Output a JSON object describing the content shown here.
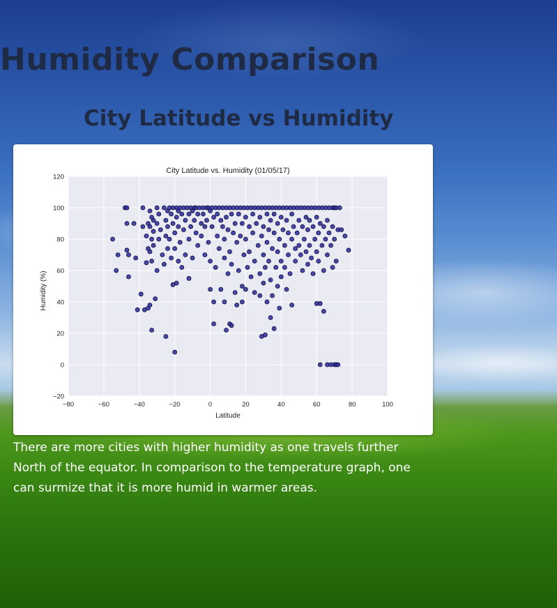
{
  "page": {
    "title": "Humidity Comparison",
    "subtitle": "City Latitude vs Humidity",
    "description": "There are more cities with higher humidity as one travels further North of the equator. In comparison to the temperature graph, one can surmize that it is more humid in warmer areas."
  },
  "colors": {
    "point": "#2b2b9e",
    "point_edge": "#0b0b3a",
    "plot_bg": "#eaeaf2",
    "grid": "#ffffff"
  },
  "chart_data": {
    "type": "scatter",
    "title": "City Latitude vs. Humidity (01/05/17)",
    "xlabel": "Latitude",
    "ylabel": "Humidity (%)",
    "xlim": [
      -80,
      100
    ],
    "ylim": [
      -20,
      120
    ],
    "xticks": [
      -80,
      -60,
      -40,
      -20,
      0,
      20,
      40,
      60,
      80,
      100
    ],
    "yticks": [
      -20,
      0,
      20,
      40,
      60,
      80,
      100,
      120
    ],
    "xtick_labels": [
      "−80",
      "−60",
      "−40",
      "−20",
      "0",
      "20",
      "40",
      "60",
      "80",
      "100"
    ],
    "ytick_labels": [
      "−20",
      "0",
      "20",
      "40",
      "60",
      "80",
      "100",
      "120"
    ],
    "grid": true,
    "points": [
      [
        -55,
        80
      ],
      [
        -53,
        60
      ],
      [
        -52,
        70
      ],
      [
        -48,
        100
      ],
      [
        -47,
        100
      ],
      [
        -47,
        90
      ],
      [
        -47,
        73
      ],
      [
        -46,
        70
      ],
      [
        -46,
        56
      ],
      [
        -43,
        90
      ],
      [
        -42,
        68
      ],
      [
        -41,
        35
      ],
      [
        -39,
        45
      ],
      [
        -38,
        100
      ],
      [
        -38,
        88
      ],
      [
        -37,
        35
      ],
      [
        -36,
        82
      ],
      [
        -36,
        65
      ],
      [
        -35,
        90
      ],
      [
        -35,
        74
      ],
      [
        -35,
        36
      ],
      [
        -34,
        98
      ],
      [
        -34,
        88
      ],
      [
        -34,
        72
      ],
      [
        -34,
        38
      ],
      [
        -33,
        94
      ],
      [
        -33,
        80
      ],
      [
        -33,
        66
      ],
      [
        -33,
        22
      ],
      [
        -32,
        92
      ],
      [
        -32,
        85
      ],
      [
        -32,
        76
      ],
      [
        -31,
        42
      ],
      [
        -30,
        100
      ],
      [
        -30,
        90
      ],
      [
        -30,
        60
      ],
      [
        -29,
        96
      ],
      [
        -29,
        80
      ],
      [
        -28,
        86
      ],
      [
        -27,
        70
      ],
      [
        -26,
        100
      ],
      [
        -26,
        64
      ],
      [
        -25,
        92
      ],
      [
        -25,
        82
      ],
      [
        -25,
        18
      ],
      [
        -24,
        98
      ],
      [
        -24,
        88
      ],
      [
        -24,
        74
      ],
      [
        -23,
        100
      ],
      [
        -23,
        80
      ],
      [
        -22,
        96
      ],
      [
        -22,
        68
      ],
      [
        -21,
        100
      ],
      [
        -21,
        90
      ],
      [
        -21,
        51
      ],
      [
        -20,
        84
      ],
      [
        -20,
        74
      ],
      [
        -20,
        8
      ],
      [
        -19,
        100
      ],
      [
        -19,
        94
      ],
      [
        -19,
        52
      ],
      [
        -18,
        98
      ],
      [
        -18,
        88
      ],
      [
        -18,
        66
      ],
      [
        -17,
        100
      ],
      [
        -17,
        78
      ],
      [
        -16,
        96
      ],
      [
        -16,
        62
      ],
      [
        -15,
        100
      ],
      [
        -15,
        86
      ],
      [
        -14,
        92
      ],
      [
        -14,
        70
      ],
      [
        -13,
        100
      ],
      [
        -12,
        96
      ],
      [
        -12,
        80
      ],
      [
        -12,
        55
      ],
      [
        -11,
        100
      ],
      [
        -11,
        88
      ],
      [
        -10,
        98
      ],
      [
        -10,
        68
      ],
      [
        -9,
        100
      ],
      [
        -9,
        92
      ],
      [
        -8,
        84
      ],
      [
        -8,
        100
      ],
      [
        -7,
        96
      ],
      [
        -7,
        76
      ],
      [
        -6,
        100
      ],
      [
        -5,
        90
      ],
      [
        -5,
        82
      ],
      [
        -4,
        100
      ],
      [
        -4,
        96
      ],
      [
        -3,
        88
      ],
      [
        -3,
        70
      ],
      [
        -2,
        100
      ],
      [
        -2,
        92
      ],
      [
        -1,
        100
      ],
      [
        -1,
        78
      ],
      [
        0,
        98
      ],
      [
        0,
        66
      ],
      [
        0,
        48
      ],
      [
        1,
        100
      ],
      [
        1,
        88
      ],
      [
        2,
        94
      ],
      [
        2,
        40
      ],
      [
        2,
        26
      ],
      [
        3,
        100
      ],
      [
        3,
        62
      ],
      [
        4,
        96
      ],
      [
        4,
        82
      ],
      [
        5,
        100
      ],
      [
        5,
        74
      ],
      [
        6,
        92
      ],
      [
        6,
        48
      ],
      [
        7,
        100
      ],
      [
        7,
        88
      ],
      [
        8,
        80
      ],
      [
        8,
        68
      ],
      [
        8,
        40
      ],
      [
        9,
        100
      ],
      [
        9,
        94
      ],
      [
        9,
        22
      ],
      [
        10,
        86
      ],
      [
        10,
        58
      ],
      [
        11,
        100
      ],
      [
        11,
        72
      ],
      [
        11,
        26
      ],
      [
        12,
        96
      ],
      [
        12,
        64
      ],
      [
        12,
        25
      ],
      [
        13,
        100
      ],
      [
        13,
        84
      ],
      [
        14,
        90
      ],
      [
        14,
        46
      ],
      [
        15,
        100
      ],
      [
        15,
        78
      ],
      [
        15,
        38
      ],
      [
        16,
        96
      ],
      [
        16,
        60
      ],
      [
        17,
        100
      ],
      [
        17,
        82
      ],
      [
        18,
        90
      ],
      [
        18,
        50
      ],
      [
        18,
        40
      ],
      [
        19,
        100
      ],
      [
        19,
        70
      ],
      [
        20,
        94
      ],
      [
        20,
        80
      ],
      [
        20,
        48
      ],
      [
        21,
        100
      ],
      [
        21,
        62
      ],
      [
        22,
        88
      ],
      [
        22,
        72
      ],
      [
        23,
        100
      ],
      [
        23,
        56
      ],
      [
        24,
        96
      ],
      [
        24,
        84
      ],
      [
        25,
        100
      ],
      [
        25,
        66
      ],
      [
        25,
        46
      ],
      [
        26,
        90
      ],
      [
        27,
        100
      ],
      [
        27,
        76
      ],
      [
        28,
        94
      ],
      [
        28,
        58
      ],
      [
        28,
        44
      ],
      [
        29,
        100
      ],
      [
        29,
        82
      ],
      [
        29,
        18
      ],
      [
        30,
        88
      ],
      [
        30,
        70
      ],
      [
        30,
        52
      ],
      [
        31,
        100
      ],
      [
        31,
        62
      ],
      [
        31,
        19
      ],
      [
        32,
        96
      ],
      [
        32,
        78
      ],
      [
        32,
        40
      ],
      [
        33,
        100
      ],
      [
        33,
        86
      ],
      [
        33,
        66
      ],
      [
        34,
        92
      ],
      [
        34,
        54
      ],
      [
        34,
        30
      ],
      [
        35,
        100
      ],
      [
        35,
        74
      ],
      [
        35,
        44
      ],
      [
        36,
        96
      ],
      [
        36,
        84
      ],
      [
        36,
        23
      ],
      [
        37,
        100
      ],
      [
        37,
        62
      ],
      [
        38,
        90
      ],
      [
        38,
        72
      ],
      [
        38,
        50
      ],
      [
        39,
        100
      ],
      [
        39,
        80
      ],
      [
        39,
        36
      ],
      [
        40,
        94
      ],
      [
        40,
        66
      ],
      [
        40,
        56
      ],
      [
        41,
        100
      ],
      [
        41,
        86
      ],
      [
        42,
        76
      ],
      [
        42,
        62
      ],
      [
        43,
        100
      ],
      [
        43,
        92
      ],
      [
        43,
        48
      ],
      [
        44,
        84
      ],
      [
        44,
        70
      ],
      [
        45,
        100
      ],
      [
        45,
        58
      ],
      [
        46,
        96
      ],
      [
        46,
        80
      ],
      [
        46,
        38
      ],
      [
        47,
        100
      ],
      [
        47,
        88
      ],
      [
        48,
        74
      ],
      [
        48,
        66
      ],
      [
        49,
        100
      ],
      [
        49,
        84
      ],
      [
        50,
        92
      ],
      [
        50,
        76
      ],
      [
        51,
        100
      ],
      [
        51,
        70
      ],
      [
        52,
        88
      ],
      [
        52,
        60
      ],
      [
        53,
        100
      ],
      [
        53,
        80
      ],
      [
        54,
        94
      ],
      [
        54,
        72
      ],
      [
        55,
        100
      ],
      [
        55,
        86
      ],
      [
        55,
        64
      ],
      [
        56,
        92
      ],
      [
        56,
        76
      ],
      [
        57,
        100
      ],
      [
        57,
        68
      ],
      [
        58,
        88
      ],
      [
        58,
        58
      ],
      [
        59,
        100
      ],
      [
        59,
        80
      ],
      [
        60,
        94
      ],
      [
        60,
        72
      ],
      [
        60,
        39
      ],
      [
        61,
        100
      ],
      [
        61,
        84
      ],
      [
        61,
        66
      ],
      [
        62,
        90
      ],
      [
        62,
        39
      ],
      [
        62,
        0
      ],
      [
        63,
        100
      ],
      [
        63,
        76
      ],
      [
        64,
        88
      ],
      [
        64,
        60
      ],
      [
        64,
        34
      ],
      [
        65,
        100
      ],
      [
        65,
        80
      ],
      [
        66,
        92
      ],
      [
        66,
        70
      ],
      [
        66,
        0
      ],
      [
        67,
        100
      ],
      [
        67,
        84
      ],
      [
        68,
        76
      ],
      [
        68,
        0
      ],
      [
        69,
        100
      ],
      [
        69,
        88
      ],
      [
        69,
        62
      ],
      [
        70,
        100
      ],
      [
        70,
        80
      ],
      [
        70,
        0
      ],
      [
        71,
        100
      ],
      [
        71,
        66
      ],
      [
        71,
        0
      ],
      [
        72,
        86
      ],
      [
        72,
        0
      ],
      [
        73,
        100
      ],
      [
        74,
        86
      ],
      [
        76,
        82
      ],
      [
        78,
        73
      ]
    ]
  }
}
